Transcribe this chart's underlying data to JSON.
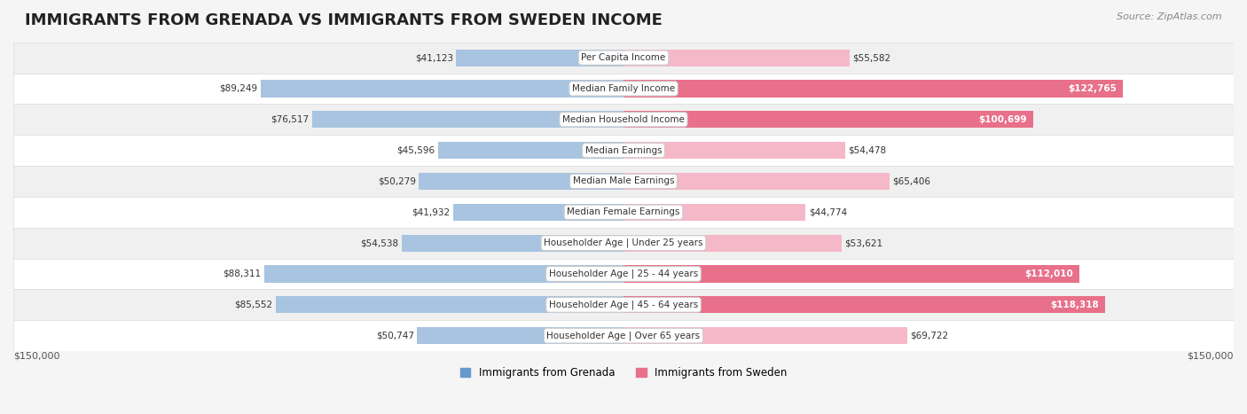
{
  "title": "IMMIGRANTS FROM GRENADA VS IMMIGRANTS FROM SWEDEN INCOME",
  "source": "Source: ZipAtlas.com",
  "categories": [
    "Per Capita Income",
    "Median Family Income",
    "Median Household Income",
    "Median Earnings",
    "Median Male Earnings",
    "Median Female Earnings",
    "Householder Age | Under 25 years",
    "Householder Age | 25 - 44 years",
    "Householder Age | 45 - 64 years",
    "Householder Age | Over 65 years"
  ],
  "grenada_values": [
    41123,
    89249,
    76517,
    45596,
    50279,
    41932,
    54538,
    88311,
    85552,
    50747
  ],
  "sweden_values": [
    55582,
    122765,
    100699,
    54478,
    65406,
    44774,
    53621,
    112010,
    118318,
    69722
  ],
  "grenada_labels": [
    "$41,123",
    "$89,249",
    "$76,517",
    "$45,596",
    "$50,279",
    "$41,932",
    "$54,538",
    "$88,311",
    "$85,552",
    "$50,747"
  ],
  "sweden_labels": [
    "$55,582",
    "$122,765",
    "$100,699",
    "$54,478",
    "$65,406",
    "$44,774",
    "$53,621",
    "$112,010",
    "$118,318",
    "$69,722"
  ],
  "grenada_color_light": "#a8c4e0",
  "grenada_color_dark": "#6699cc",
  "sweden_color_light": "#f5b8c8",
  "sweden_color_dark": "#e8708a",
  "max_value": 150000,
  "bar_height": 0.55,
  "background_color": "#f5f5f5",
  "row_bg_color": "#ffffff",
  "label_inside_threshold": 90000,
  "grenada_legend": "Immigrants from Grenada",
  "sweden_legend": "Immigrants from Sweden"
}
